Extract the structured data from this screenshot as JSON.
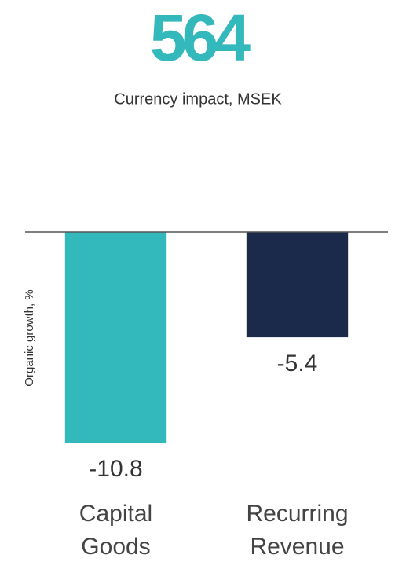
{
  "chart_data": {
    "type": "bar",
    "headline": 564,
    "subtitle": "Currency impact, MSEK",
    "y_label": "Organic growth, %",
    "categories": [
      "Capital Goods",
      "Recurring Revenue"
    ],
    "values": [
      -10.8,
      -5.4
    ],
    "colors": [
      "#33b8bc",
      "#1b2a4b"
    ],
    "ylim": [
      -12,
      0
    ],
    "grid": false
  }
}
